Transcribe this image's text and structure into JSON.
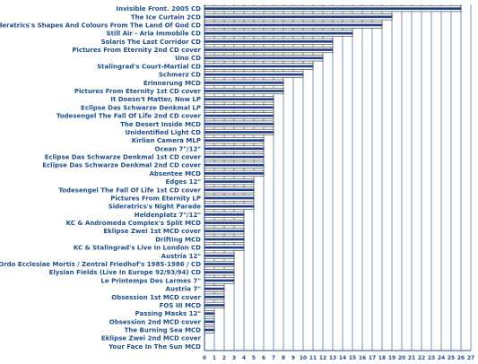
{
  "chart_data": {
    "type": "bar",
    "orientation": "horizontal",
    "categories": [
      "Invisible Front. 2005 CD",
      "The Ice Curtain 2CD",
      "Sideratrics's Shapes And Colours From The Land Of God CD",
      "Still Air - Aria Immobile CD",
      "Solaris The Last Corridor CD",
      "Pictures From Eternity 2nd CD cover",
      "Uno CD",
      "Stalingrad's Court-Martial CD",
      "Schmerz CD",
      "Erinnerung MCD",
      "Pictures From Eternity 1st CD cover",
      "It Doesn't Matter, Now LP",
      "Eclipse Das Schwarze Denkmal LP",
      "Todesengel The Fall Of Life 2nd CD cover",
      "The Desert Inside MCD",
      "Unidentified Light CD",
      "Kirlian Camera MLP",
      "Ocean 7\"/12\"",
      "Eclipse Das Schwarze Denkmal 1st CD cover",
      "Eclipse Das Schwarze Denkmal 2nd CD cover",
      "Absentee MCD",
      "Edges 12\"",
      "Todesengel The Fall Of Life 1st CD cover",
      "Pictures From Eternity LP",
      "Sideratrics's Night Parade",
      "Heldenplatz 7\"/12\"",
      "KC & Andromeda Complex's Split MCD",
      "Eklipse Zwei 1st MCD cover",
      "Drifting MCD",
      "KC & Stalingrad's Live In London CD",
      "Austria 12\"",
      "Ordo Ecclesiae Mortis / Zentral Friedhof's 1985-1986 / CD",
      "Elysian Fields (Live In Europe 92/93/94) CD",
      "Le Printemps Des Larmes 7\"",
      "Austria 7\"",
      "Obsession 1st MCD cover",
      "FOS III MCD",
      "Passing Masks 12\"",
      "Obsession 2nd MCD cover",
      "The Burning Sea MCD",
      "Eklipse Zwei 2nd MCD cover",
      "Your Face In The Sun MCD"
    ],
    "values": [
      26,
      19,
      18,
      15,
      13,
      13,
      12,
      11,
      10,
      8,
      8,
      7,
      7,
      7,
      7,
      7,
      6,
      6,
      6,
      6,
      6,
      5,
      5,
      5,
      5,
      4,
      4,
      4,
      4,
      4,
      3,
      3,
      3,
      3,
      2,
      2,
      2,
      1,
      1,
      1,
      0,
      0
    ],
    "x_ticks": [
      "0",
      "1",
      "2",
      "3",
      "4",
      "5",
      "6",
      "7",
      "8",
      "9",
      "10",
      "11",
      "12",
      "13",
      "14",
      "15",
      "16",
      "17",
      "18",
      "19",
      "20",
      "21",
      "22",
      "23",
      "24",
      "25",
      "26",
      "27"
    ],
    "xlim": [
      0,
      27
    ],
    "title": "",
    "xlabel": "",
    "ylabel": "",
    "grid": "vertical",
    "legend": "none",
    "colors": {
      "text": "#1f4f8f",
      "bar_fill": "#ffffff",
      "bar_stripe": "#1f3f87",
      "bar_outline": "#000000",
      "background": "#ffffff"
    }
  }
}
